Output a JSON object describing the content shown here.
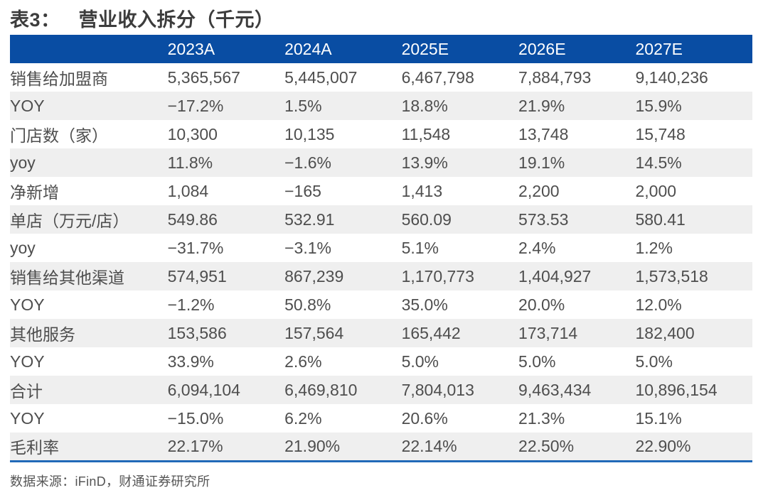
{
  "title": {
    "tag": "表3：",
    "text": "营业收入拆分（千元）"
  },
  "table": {
    "columns": [
      "",
      "2023A",
      "2024A",
      "2025E",
      "2026E",
      "2027E"
    ],
    "rows": [
      {
        "label": "销售给加盟商",
        "values": [
          "5,365,567",
          "5,445,007",
          "6,467,798",
          "7,884,793",
          "9,140,236"
        ]
      },
      {
        "label": "YOY",
        "values": [
          "−17.2%",
          "1.5%",
          "18.8%",
          "21.9%",
          "15.9%"
        ]
      },
      {
        "label": "门店数（家）",
        "values": [
          "10,300",
          "10,135",
          "11,548",
          "13,748",
          "15,748"
        ]
      },
      {
        "label": "yoy",
        "values": [
          "11.8%",
          "−1.6%",
          "13.9%",
          "19.1%",
          "14.5%"
        ]
      },
      {
        "label": "净新增",
        "values": [
          "1,084",
          "−165",
          "1,413",
          "2,200",
          "2,000"
        ]
      },
      {
        "label": "单店（万元/店）",
        "values": [
          "549.86",
          "532.91",
          "560.09",
          "573.53",
          "580.41"
        ]
      },
      {
        "label": "yoy",
        "values": [
          "−31.7%",
          "−3.1%",
          "5.1%",
          "2.4%",
          "1.2%"
        ]
      },
      {
        "label": "销售给其他渠道",
        "values": [
          "574,951",
          "867,239",
          "1,170,773",
          "1,404,927",
          "1,573,518"
        ]
      },
      {
        "label": "YOY",
        "values": [
          "−1.2%",
          "50.8%",
          "35.0%",
          "20.0%",
          "12.0%"
        ]
      },
      {
        "label": "其他服务",
        "values": [
          "153,586",
          "157,564",
          "165,442",
          "173,714",
          "182,400"
        ]
      },
      {
        "label": "YOY",
        "values": [
          "33.9%",
          "2.6%",
          "5.0%",
          "5.0%",
          "5.0%"
        ]
      },
      {
        "label": "合计",
        "values": [
          "6,094,104",
          "6,469,810",
          "7,804,013",
          "9,463,434",
          "10,896,154"
        ]
      },
      {
        "label": "YOY",
        "values": [
          "−15.0%",
          "6.2%",
          "20.6%",
          "21.3%",
          "15.1%"
        ]
      },
      {
        "label": "毛利率",
        "values": [
          "22.17%",
          "21.90%",
          "22.14%",
          "22.50%",
          "22.90%"
        ]
      }
    ]
  },
  "footer": {
    "source": "数据来源：iFinD，财通证券研究所"
  },
  "colors": {
    "header_bg": "#094DA3",
    "alt_row_bg": "#EFEFEF",
    "bottom_border": "#2169B8",
    "body_text": "#4E4E4E",
    "header_text": "#FFFFFF",
    "title_text": "#3C3C3C"
  }
}
